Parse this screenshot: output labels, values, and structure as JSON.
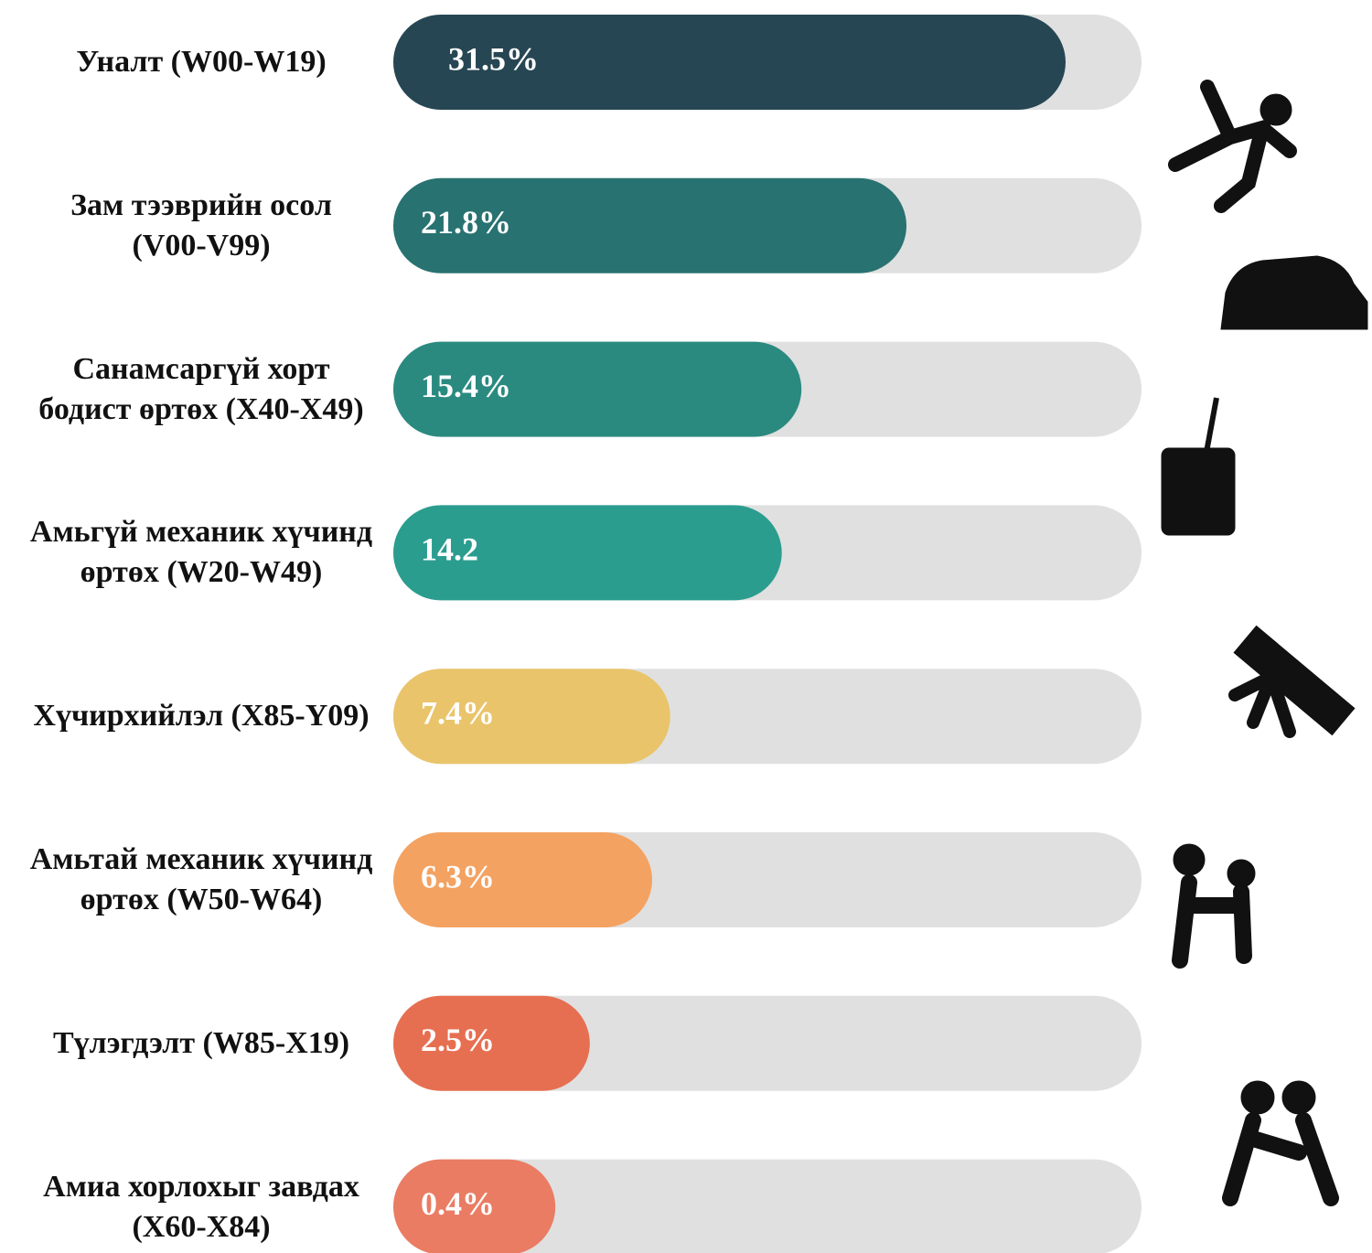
{
  "chart_data": {
    "type": "bar",
    "categories": [
      "Уналт (W00-W19)",
      "Зам тээврийн осол\n(V00-V99)",
      "Санамсаргүй хорт\nбодист өртөх (X40-X49)",
      "Амьгүй механик хүчинд\nөртөх (W20-W49)",
      "Хүчирхийлэл (X85-Y09)",
      "Амьтай механик хүчинд\nөртөх (W50-W64)",
      "Түлэгдэлт (W85-X19)",
      "Амиа хорлохыг завдах\n(X60-X84)"
    ],
    "values": [
      31.5,
      21.8,
      15.4,
      14.2,
      7.4,
      6.3,
      2.5,
      0.4
    ],
    "value_labels": [
      "31.5%",
      "21.8%",
      "15.4%",
      "14.2",
      "7.4%",
      "6.3%",
      "2.5%",
      "0.4%"
    ],
    "colors": [
      "#264653",
      "#287271",
      "#2a8a80",
      "#2a9d8f",
      "#e9c46a",
      "#f4a261",
      "#e76f51",
      "#ea7c63"
    ]
  }
}
